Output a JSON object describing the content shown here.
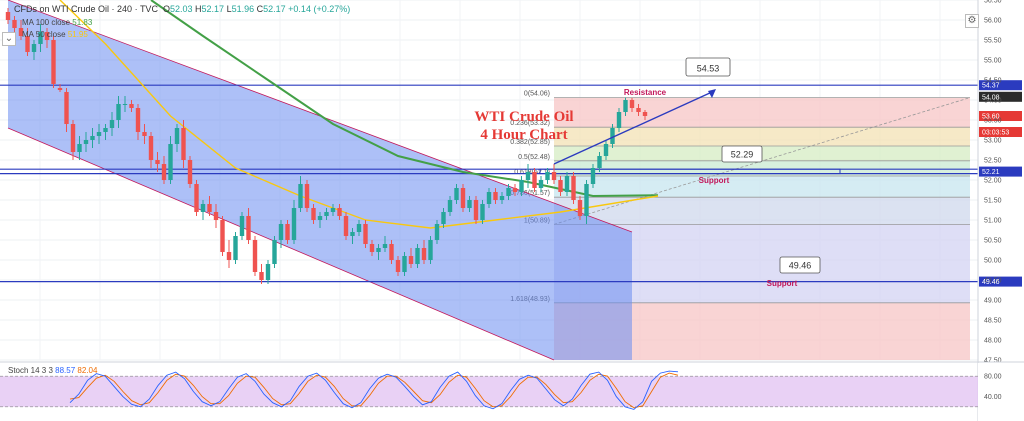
{
  "header": {
    "symbol": "CFDs on WTI Crude Oil",
    "interval": "240",
    "source": "TVC",
    "open_label": "O",
    "open": "52.03",
    "high_label": "H",
    "high": "52.17",
    "low_label": "L",
    "low": "51.96",
    "close_label": "C",
    "close": "52.17",
    "change": "+0.14 (+0.27%)"
  },
  "indicators": {
    "ma100": {
      "label": "MA 100 close",
      "value": "51.83",
      "color": "#43a047"
    },
    "ma50": {
      "label": "MA 50 close",
      "value": "51.95",
      "color": "#f9c80e"
    }
  },
  "stoch": {
    "label": "Stoch 14 3 3",
    "k": "88.57",
    "d": "82.04"
  },
  "chart_data": {
    "type": "candlestick",
    "title": "WTI Crude Oil\n4 Hour Chart",
    "y_axis": {
      "range": [
        47.5,
        56.5
      ],
      "ticks": [
        "56.50",
        "56.00",
        "55.50",
        "55.00",
        "54.50",
        "54.00",
        "53.50",
        "53.00",
        "52.50",
        "52.00",
        "51.50",
        "51.00",
        "50.50",
        "50.00",
        "49.50",
        "49.00",
        "48.50",
        "48.00",
        "47.50"
      ],
      "markers": [
        {
          "value": 54.37,
          "label": "54.37",
          "color": "#2b3bbf"
        },
        {
          "value": 54.08,
          "label": "54.08",
          "color": "#2b2b2b"
        },
        {
          "value": 53.6,
          "label": "53.60",
          "color": "#e53935"
        },
        {
          "value": 53.2,
          "label": "03:03:53",
          "color": "#e53935"
        },
        {
          "value": 52.21,
          "label": "52.21",
          "color": "#2b3bbf"
        },
        {
          "value": 49.46,
          "label": "49.46",
          "color": "#2b3bbf"
        }
      ]
    },
    "stoch_axis": {
      "ticks": [
        "80.00",
        "40.00"
      ]
    },
    "candles_ohlc": [
      [
        56.2,
        56.3,
        55.9,
        56.0
      ],
      [
        56.0,
        56.1,
        55.7,
        55.8
      ],
      [
        55.8,
        56.0,
        55.5,
        55.6
      ],
      [
        55.6,
        55.8,
        55.1,
        55.2
      ],
      [
        55.2,
        55.5,
        55.0,
        55.4
      ],
      [
        55.4,
        55.9,
        55.2,
        55.7
      ],
      [
        55.7,
        55.8,
        55.3,
        55.5
      ],
      [
        55.5,
        55.6,
        54.3,
        54.4
      ],
      [
        54.3,
        54.4,
        54.2,
        54.25
      ],
      [
        54.2,
        54.3,
        53.2,
        53.4
      ],
      [
        53.4,
        53.5,
        52.5,
        52.7
      ],
      [
        52.7,
        53.1,
        52.5,
        52.9
      ],
      [
        52.9,
        53.2,
        52.7,
        53.0
      ],
      [
        53.0,
        53.3,
        52.8,
        53.1
      ],
      [
        53.1,
        53.4,
        52.9,
        53.2
      ],
      [
        53.2,
        53.4,
        53.0,
        53.3
      ],
      [
        53.3,
        53.7,
        53.1,
        53.5
      ],
      [
        53.5,
        54.1,
        53.3,
        53.9
      ],
      [
        53.9,
        54.1,
        53.7,
        53.9
      ],
      [
        53.9,
        54.0,
        53.7,
        53.8
      ],
      [
        53.8,
        53.9,
        53.0,
        53.2
      ],
      [
        53.2,
        53.4,
        52.9,
        53.1
      ],
      [
        53.1,
        53.2,
        52.3,
        52.5
      ],
      [
        52.5,
        52.7,
        52.2,
        52.4
      ],
      [
        52.4,
        52.6,
        51.9,
        52.0
      ],
      [
        52.0,
        53.1,
        51.9,
        52.9
      ],
      [
        52.9,
        53.4,
        52.7,
        53.3
      ],
      [
        53.3,
        53.5,
        52.3,
        52.5
      ],
      [
        52.5,
        52.6,
        51.8,
        51.9
      ],
      [
        51.9,
        52.0,
        51.1,
        51.2
      ],
      [
        51.2,
        51.5,
        51.0,
        51.4
      ],
      [
        51.4,
        51.6,
        51.1,
        51.2
      ],
      [
        51.2,
        51.4,
        50.8,
        51.0
      ],
      [
        51.0,
        51.1,
        50.1,
        50.2
      ],
      [
        50.2,
        50.5,
        49.8,
        50.0
      ],
      [
        50.0,
        50.7,
        49.9,
        50.6
      ],
      [
        50.6,
        51.2,
        50.5,
        51.1
      ],
      [
        51.1,
        51.3,
        50.4,
        50.5
      ],
      [
        50.5,
        50.6,
        49.6,
        49.7
      ],
      [
        49.7,
        49.9,
        49.4,
        49.5
      ],
      [
        49.5,
        50.0,
        49.4,
        49.9
      ],
      [
        49.9,
        50.6,
        49.8,
        50.5
      ],
      [
        50.5,
        51.0,
        50.3,
        50.9
      ],
      [
        50.9,
        51.0,
        50.4,
        50.5
      ],
      [
        50.5,
        51.5,
        50.4,
        51.3
      ],
      [
        51.3,
        52.1,
        51.2,
        51.9
      ],
      [
        51.9,
        52.0,
        51.2,
        51.3
      ],
      [
        51.3,
        51.4,
        50.9,
        51.0
      ],
      [
        51.0,
        51.2,
        50.8,
        51.1
      ],
      [
        51.1,
        51.3,
        51.0,
        51.2
      ],
      [
        51.2,
        51.4,
        51.1,
        51.3
      ],
      [
        51.3,
        51.4,
        51.0,
        51.1
      ],
      [
        51.1,
        51.2,
        50.5,
        50.6
      ],
      [
        50.6,
        50.8,
        50.4,
        50.7
      ],
      [
        50.7,
        51.0,
        50.6,
        50.9
      ],
      [
        50.9,
        51.0,
        50.3,
        50.4
      ],
      [
        50.4,
        50.5,
        50.1,
        50.2
      ],
      [
        50.2,
        50.4,
        50.0,
        50.3
      ],
      [
        50.3,
        50.6,
        50.2,
        50.4
      ],
      [
        50.4,
        50.5,
        49.9,
        50.0
      ],
      [
        50.0,
        50.1,
        49.6,
        49.7
      ],
      [
        49.7,
        50.2,
        49.6,
        50.1
      ],
      [
        50.1,
        50.3,
        49.8,
        49.9
      ],
      [
        49.9,
        50.4,
        49.8,
        50.3
      ],
      [
        50.3,
        50.5,
        49.9,
        50.0
      ],
      [
        50.0,
        50.6,
        49.9,
        50.5
      ],
      [
        50.5,
        51.0,
        50.4,
        50.9
      ],
      [
        50.9,
        51.3,
        50.8,
        51.2
      ],
      [
        51.2,
        51.6,
        51.1,
        51.5
      ],
      [
        51.5,
        51.9,
        51.4,
        51.8
      ],
      [
        51.8,
        51.9,
        51.2,
        51.3
      ],
      [
        51.3,
        51.6,
        51.2,
        51.5
      ],
      [
        51.5,
        51.6,
        50.9,
        51.0
      ],
      [
        51.0,
        51.5,
        50.9,
        51.4
      ],
      [
        51.4,
        51.8,
        51.3,
        51.7
      ],
      [
        51.7,
        51.8,
        51.4,
        51.5
      ],
      [
        51.5,
        51.7,
        51.4,
        51.6
      ],
      [
        51.6,
        51.9,
        51.5,
        51.8
      ],
      [
        51.8,
        51.9,
        51.6,
        51.7
      ],
      [
        51.7,
        52.1,
        51.6,
        52.0
      ],
      [
        52.0,
        52.4,
        51.8,
        52.2
      ],
      [
        52.2,
        52.3,
        51.7,
        51.8
      ],
      [
        51.8,
        52.1,
        51.7,
        52.0
      ],
      [
        52.0,
        52.3,
        51.9,
        52.2
      ],
      [
        52.2,
        52.4,
        51.9,
        52.0
      ],
      [
        52.0,
        52.1,
        51.6,
        51.7
      ],
      [
        51.7,
        52.2,
        51.6,
        52.1
      ],
      [
        52.1,
        52.2,
        51.4,
        51.5
      ],
      [
        51.5,
        51.6,
        51.0,
        51.1
      ],
      [
        51.1,
        52.0,
        50.9,
        51.9
      ],
      [
        51.9,
        52.4,
        51.8,
        52.3
      ],
      [
        52.3,
        52.7,
        52.2,
        52.6
      ],
      [
        52.6,
        53.0,
        52.5,
        52.9
      ],
      [
        52.9,
        53.4,
        52.8,
        53.3
      ],
      [
        53.3,
        53.8,
        53.2,
        53.7
      ],
      [
        53.7,
        54.06,
        53.6,
        54.0
      ],
      [
        54.0,
        54.05,
        53.7,
        53.8
      ],
      [
        53.8,
        53.9,
        53.6,
        53.7
      ],
      [
        53.7,
        53.75,
        53.5,
        53.6
      ]
    ],
    "moving_averages": [
      {
        "name": "MA 100 close",
        "color": "#43a047",
        "values_by_index": [
          [
            22,
            56.5
          ],
          [
            30,
            55.6
          ],
          [
            40,
            54.5
          ],
          [
            50,
            53.4
          ],
          [
            60,
            52.6
          ],
          [
            70,
            52.2
          ],
          [
            80,
            51.95
          ],
          [
            90,
            51.6
          ],
          [
            100,
            51.62
          ]
        ]
      },
      {
        "name": "MA 50 close",
        "color": "#f9c80e",
        "values_by_index": [
          [
            8,
            56.5
          ],
          [
            15,
            55.4
          ],
          [
            25,
            53.6
          ],
          [
            35,
            52.3
          ],
          [
            45,
            51.6
          ],
          [
            55,
            51.0
          ],
          [
            65,
            50.8
          ],
          [
            75,
            51.0
          ],
          [
            85,
            51.2
          ],
          [
            100,
            51.6
          ]
        ]
      }
    ],
    "channel": {
      "upper": [
        [
          0,
          56.5
        ],
        [
          96,
          50.7
        ]
      ],
      "lower": [
        [
          0,
          53.3
        ],
        [
          84,
          47.5
        ]
      ]
    },
    "horizontal_levels": [
      {
        "value": 54.37,
        "color": "#2b3bbf"
      },
      {
        "value": 52.27,
        "color": "#2b3bbf"
      },
      {
        "value": 52.16,
        "color": "#2b3bbf"
      },
      {
        "value": 49.46,
        "color": "#2b3bbf"
      }
    ],
    "fibonacci": {
      "from_index": 84,
      "to_index": 135,
      "levels": [
        {
          "ratio": "0",
          "value": 54.06,
          "label": "0(54.06)"
        },
        {
          "ratio": "0.236",
          "value": 53.32,
          "label": "0.236(53.32)"
        },
        {
          "ratio": "0.382",
          "value": 52.85,
          "label": "0.382(52.85)"
        },
        {
          "ratio": "0.5",
          "value": 52.48,
          "label": "0.5(52.48)"
        },
        {
          "ratio": "0.618",
          "value": 52.1,
          "label": "0.618(52.1)"
        },
        {
          "ratio": "0.786",
          "value": 51.57,
          "label": "0.786(51.57)"
        },
        {
          "ratio": "1",
          "value": 50.89,
          "label": "1(50.89)"
        },
        {
          "ratio": "1.618",
          "value": 48.93,
          "label": "1.618(48.93)"
        }
      ]
    },
    "annotations": [
      {
        "text": "Resistance",
        "color": "#c2185b"
      },
      {
        "text": "Support",
        "color": "#c2185b"
      },
      {
        "text": "Support",
        "color": "#c2185b"
      }
    ],
    "callouts": [
      {
        "text": "54.53"
      },
      {
        "text": "52.29"
      },
      {
        "text": "49.46"
      }
    ],
    "stochastic": {
      "k": [
        28,
        45,
        72,
        85,
        80,
        60,
        40,
        25,
        20,
        35,
        62,
        82,
        88,
        75,
        50,
        30,
        22,
        30,
        55,
        78,
        85,
        70,
        45,
        28,
        20,
        32,
        60,
        80,
        86,
        72,
        48,
        26,
        18,
        28,
        55,
        76,
        84,
        78,
        60,
        40,
        24,
        30,
        58,
        80,
        88,
        70,
        42,
        22,
        16,
        26,
        52,
        74,
        82,
        76,
        55,
        34,
        22,
        35,
        62,
        84,
        88,
        72,
        40,
        20,
        15,
        30,
        70,
        86,
        90,
        88.57
      ],
      "d": [
        35,
        38,
        58,
        76,
        82,
        70,
        50,
        32,
        24,
        28,
        48,
        72,
        84,
        80,
        62,
        40,
        26,
        26,
        42,
        66,
        80,
        78,
        58,
        36,
        24,
        26,
        46,
        70,
        82,
        78,
        60,
        36,
        22,
        22,
        42,
        66,
        80,
        80,
        68,
        50,
        32,
        28,
        44,
        68,
        82,
        78,
        56,
        32,
        20,
        22,
        40,
        64,
        78,
        78,
        64,
        44,
        28,
        30,
        48,
        72,
        84,
        80,
        56,
        30,
        18,
        22,
        50,
        78,
        86,
        82.04
      ]
    }
  },
  "title_lines": [
    "WTI Crude Oil",
    "4 Hour Chart"
  ],
  "icons": {
    "settings": "gear-icon",
    "expand": "chevron-icon"
  }
}
